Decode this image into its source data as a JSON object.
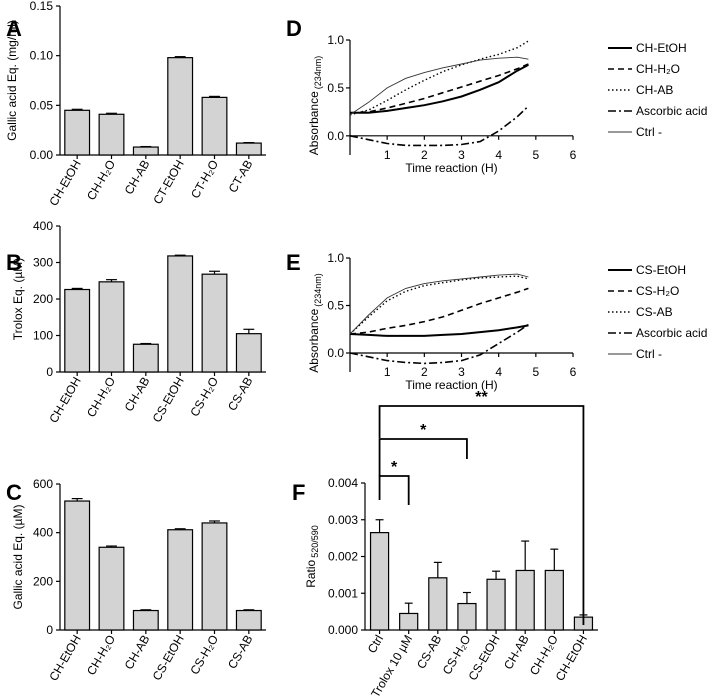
{
  "figure": {
    "panel_letters": [
      "A",
      "B",
      "C",
      "D",
      "E",
      "F"
    ]
  },
  "chart_data": [
    {
      "panel": "A",
      "type": "bar",
      "ylabel": "Gallic acid Eq. (mg/ml)",
      "ylim": [
        0,
        0.15
      ],
      "yticks": [
        "0.00",
        "0.05",
        "0.10",
        "0.15"
      ],
      "categories": [
        "CH-EtOH",
        "CH-H₂O",
        "CH-AB",
        "CT-EtOH",
        "CT-H₂O",
        "CT-AB"
      ],
      "values": [
        0.045,
        0.041,
        0.008,
        0.098,
        0.058,
        0.012
      ],
      "errors": [
        0.001,
        0.001,
        0.0005,
        0.001,
        0.001,
        0.0005
      ],
      "bar_color": "#d3d3d3"
    },
    {
      "panel": "B",
      "type": "bar",
      "ylabel": "Trolox Eq. (µM)",
      "ylim": [
        0,
        400
      ],
      "yticks": [
        "0",
        "100",
        "200",
        "300",
        "400"
      ],
      "categories": [
        "CH-EtOH",
        "CH-H₂O",
        "CH-AB",
        "CS-EtOH",
        "CS-H₂O",
        "CS-AB"
      ],
      "values": [
        226,
        247,
        76,
        318,
        268,
        105
      ],
      "errors": [
        3,
        6,
        2,
        2,
        8,
        12
      ],
      "bar_color": "#d3d3d3"
    },
    {
      "panel": "C",
      "type": "bar",
      "ylabel": "Gallic acid Eq. (µM)",
      "ylim": [
        0,
        600
      ],
      "yticks": [
        "0",
        "200",
        "400",
        "600"
      ],
      "categories": [
        "CH-EtOH",
        "CH-H₂O",
        "CH-AB",
        "CS-EtOH",
        "CS-H₂O",
        "CS-AB"
      ],
      "values": [
        530,
        340,
        80,
        412,
        440,
        80
      ],
      "errors": [
        10,
        5,
        3,
        4,
        8,
        3
      ],
      "bar_color": "#d3d3d3"
    },
    {
      "panel": "D",
      "type": "line",
      "xlabel": "Time reaction (H)",
      "ylabel": "Absorbance",
      "ylabel_sub": "(234nm)",
      "xlim": [
        0,
        6
      ],
      "ylim": [
        -0.2,
        1.0
      ],
      "xticks": [
        "1",
        "2",
        "3",
        "4",
        "5",
        "6"
      ],
      "yticks": [
        "0.0",
        "0.5",
        "1.0"
      ],
      "series": [
        {
          "name": "CH-EtOH",
          "style": "solid",
          "x": [
            0,
            0.5,
            1,
            1.5,
            2,
            2.5,
            3,
            3.5,
            4,
            4.5,
            4.8
          ],
          "y": [
            0.24,
            0.24,
            0.26,
            0.29,
            0.32,
            0.36,
            0.41,
            0.48,
            0.56,
            0.68,
            0.74
          ]
        },
        {
          "name": "CH-H₂O",
          "style": "dashed",
          "x": [
            0,
            0.5,
            1,
            1.5,
            2,
            2.5,
            3,
            3.5,
            4,
            4.5,
            4.8
          ],
          "y": [
            0.24,
            0.25,
            0.29,
            0.34,
            0.39,
            0.45,
            0.51,
            0.57,
            0.63,
            0.7,
            0.75
          ]
        },
        {
          "name": "CH-AB",
          "style": "dotted",
          "x": [
            0,
            0.5,
            1,
            1.5,
            2,
            2.5,
            3,
            3.5,
            4,
            4.5,
            4.8
          ],
          "y": [
            0.22,
            0.27,
            0.37,
            0.48,
            0.58,
            0.67,
            0.74,
            0.8,
            0.85,
            0.92,
            0.99
          ]
        },
        {
          "name": "Ascorbic acid",
          "style": "dashdot",
          "x": [
            0,
            0.5,
            1,
            1.5,
            2,
            2.5,
            3,
            3.5,
            4,
            4.5,
            4.8
          ],
          "y": [
            0.0,
            -0.04,
            -0.08,
            -0.1,
            -0.1,
            -0.1,
            -0.09,
            -0.06,
            0.05,
            0.2,
            0.31
          ]
        },
        {
          "name": "Ctrl -",
          "style": "thin",
          "x": [
            0,
            0.5,
            1,
            1.5,
            2,
            2.5,
            3,
            3.5,
            4,
            4.5,
            4.8
          ],
          "y": [
            0.22,
            0.35,
            0.5,
            0.6,
            0.66,
            0.71,
            0.75,
            0.79,
            0.81,
            0.82,
            0.8
          ]
        }
      ]
    },
    {
      "panel": "E",
      "type": "line",
      "xlabel": "Time reaction (H)",
      "ylabel": "Absorbance",
      "ylabel_sub": "(234nm)",
      "xlim": [
        0,
        6
      ],
      "ylim": [
        -0.2,
        1.0
      ],
      "xticks": [
        "1",
        "2",
        "3",
        "4",
        "5",
        "6"
      ],
      "yticks": [
        "0.0",
        "0.5",
        "1.0"
      ],
      "series": [
        {
          "name": "CS-EtOH",
          "style": "solid",
          "x": [
            0,
            0.5,
            1,
            1.5,
            2,
            2.5,
            3,
            3.5,
            4,
            4.5,
            4.8
          ],
          "y": [
            0.2,
            0.19,
            0.18,
            0.18,
            0.18,
            0.19,
            0.2,
            0.22,
            0.24,
            0.27,
            0.29
          ]
        },
        {
          "name": "CS-H₂O",
          "style": "dashed",
          "x": [
            0,
            0.5,
            1,
            1.5,
            2,
            2.5,
            3,
            3.5,
            4,
            4.5,
            4.8
          ],
          "y": [
            0.2,
            0.22,
            0.26,
            0.29,
            0.33,
            0.38,
            0.45,
            0.52,
            0.58,
            0.64,
            0.68
          ]
        },
        {
          "name": "CS-AB",
          "style": "dotted",
          "x": [
            0,
            0.5,
            1,
            1.5,
            2,
            2.5,
            3,
            3.5,
            4,
            4.5,
            4.8
          ],
          "y": [
            0.2,
            0.38,
            0.55,
            0.65,
            0.71,
            0.74,
            0.77,
            0.79,
            0.8,
            0.81,
            0.78
          ]
        },
        {
          "name": "Ascorbic acid",
          "style": "dashdot",
          "x": [
            0,
            0.5,
            1,
            1.5,
            2,
            2.5,
            3,
            3.5,
            4,
            4.5,
            4.8
          ],
          "y": [
            0.0,
            -0.04,
            -0.08,
            -0.1,
            -0.11,
            -0.1,
            -0.08,
            -0.02,
            0.1,
            0.22,
            0.3
          ]
        },
        {
          "name": "Ctrl -",
          "style": "thin",
          "x": [
            0,
            0.5,
            1,
            1.5,
            2,
            2.5,
            3,
            3.5,
            4,
            4.5,
            4.8
          ],
          "y": [
            0.2,
            0.4,
            0.58,
            0.68,
            0.73,
            0.76,
            0.78,
            0.8,
            0.82,
            0.83,
            0.8
          ]
        }
      ]
    },
    {
      "panel": "F",
      "type": "bar",
      "ylabel": "Ratio",
      "ylabel_sub": "520/590",
      "ylim": [
        0,
        0.004
      ],
      "yticks": [
        "0.000",
        "0.001",
        "0.002",
        "0.003",
        "0.004"
      ],
      "categories": [
        "Ctrl",
        "Trolox 10 µM",
        "CS-AB",
        "CS-H₂O",
        "CS-EtOH",
        "CH-AB",
        "CH-H₂O",
        "CH-EtOH"
      ],
      "values": [
        0.00265,
        0.00045,
        0.00142,
        0.00072,
        0.00138,
        0.00162,
        0.00162,
        0.00035
      ],
      "errors": [
        0.00035,
        0.00028,
        0.00042,
        0.0003,
        0.00022,
        0.0008,
        0.00058,
        6e-05
      ],
      "bar_color": "#d3d3d3",
      "significance": [
        {
          "from": 0,
          "to": 7,
          "label": "**"
        },
        {
          "from": 0,
          "to": 3,
          "label": "*"
        },
        {
          "from": 0,
          "to": 1,
          "label": "*"
        }
      ]
    }
  ]
}
